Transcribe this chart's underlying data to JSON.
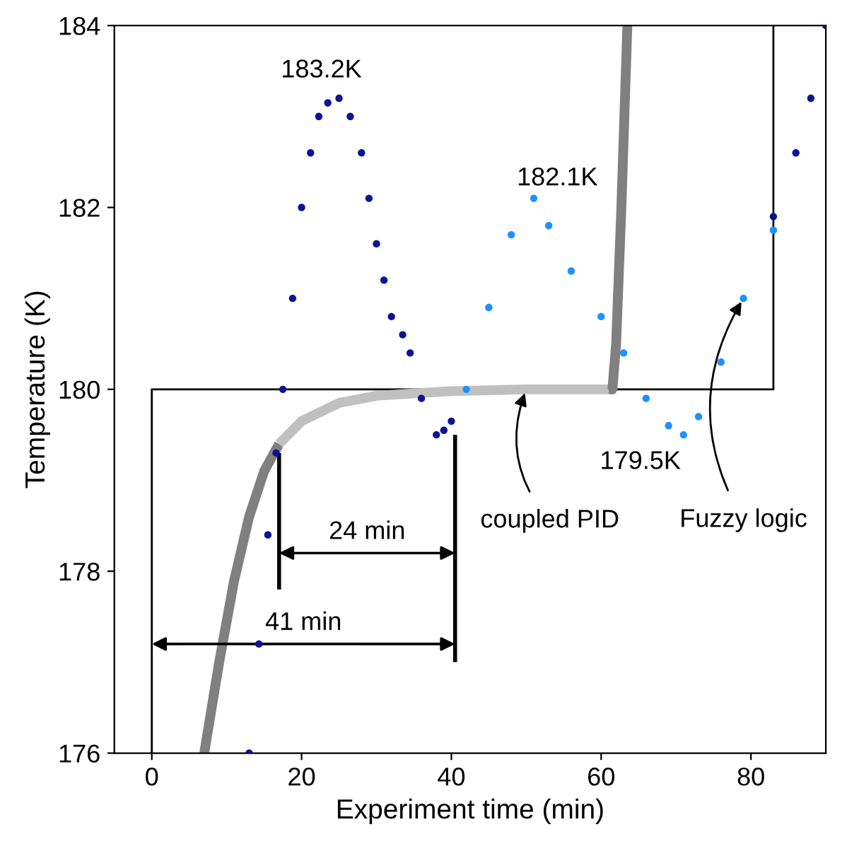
{
  "chart_data": {
    "type": "line",
    "xlabel": "Experiment time (min)",
    "ylabel": "Temperature (K)",
    "xlim": [
      -5,
      90
    ],
    "ylim": [
      176,
      184
    ],
    "xticks": [
      0,
      20,
      40,
      60,
      80
    ],
    "yticks": [
      176,
      178,
      180,
      182,
      184
    ],
    "grid": false,
    "legend": false,
    "series": [
      {
        "color": "#000000",
        "x": [
          0,
          0,
          83,
          83
        ],
        "values": [
          176,
          180,
          180,
          184
        ]
      },
      {
        "color": "#808080",
        "x": [
          7,
          9,
          11,
          13,
          15,
          17
        ],
        "values": [
          176,
          177,
          177.9,
          178.6,
          179.1,
          179.4
        ]
      },
      {
        "color": "#c0c0c0",
        "x": [
          17,
          20,
          25,
          30,
          40,
          50,
          61
        ],
        "values": [
          179.4,
          179.65,
          179.85,
          179.93,
          179.98,
          180,
          180
        ]
      },
      {
        "color": "#808080",
        "x": [
          61,
          61.5,
          62,
          62.7,
          63.5
        ],
        "values": [
          180,
          180,
          180.5,
          182,
          184
        ]
      },
      {
        "type": "scatter",
        "marker": "circle",
        "color": "#0a1496",
        "x": [
          13,
          14.3,
          15.5,
          16.6,
          17.5,
          18.8,
          20,
          21.2,
          22.3,
          23.5,
          25,
          26.5,
          28,
          29,
          30,
          31,
          32,
          33.5,
          34.5,
          36,
          38,
          39,
          40
        ],
        "values": [
          176,
          177.2,
          178.4,
          179.3,
          180,
          181,
          182,
          182.6,
          183,
          183.15,
          183.2,
          183,
          182.6,
          182.1,
          181.6,
          181.2,
          180.8,
          180.6,
          180.4,
          179.9,
          179.5,
          179.55,
          179.65
        ]
      },
      {
        "type": "scatter",
        "marker": "circle",
        "color": "#1e90ff",
        "x": [
          42,
          45,
          48,
          51,
          53,
          56,
          60,
          63,
          66,
          69,
          71,
          73,
          76,
          79,
          83
        ],
        "values": [
          180,
          180.9,
          181.7,
          182.1,
          181.8,
          181.3,
          180.8,
          180.4,
          179.9,
          179.6,
          179.5,
          179.7,
          180.3,
          181,
          181.75
        ]
      },
      {
        "type": "scatter",
        "marker": "circle",
        "color": "#0a1496",
        "x": [
          83,
          86,
          88,
          90
        ],
        "values": [
          181.9,
          182.6,
          183.2,
          184
        ]
      },
      {
        "color": "#000000",
        "x": [
          17,
          17
        ],
        "values": [
          177.8,
          179.3
        ]
      },
      {
        "color": "#000000",
        "x": [
          40.5,
          40.5
        ],
        "values": [
          177,
          179.5
        ]
      }
    ],
    "annotations": [
      {
        "text": "183.2K",
        "x": 25,
        "y": 183.2
      },
      {
        "text": "182.1K",
        "x": 51,
        "y": 182.1
      },
      {
        "text": "179.5K",
        "x": 71,
        "y": 179.5
      },
      {
        "text": "coupled PID",
        "x": 50,
        "y": 180
      },
      {
        "text": "Fuzzy logic",
        "x": 79,
        "y": 181
      },
      "24 min",
      "41 min"
    ]
  }
}
